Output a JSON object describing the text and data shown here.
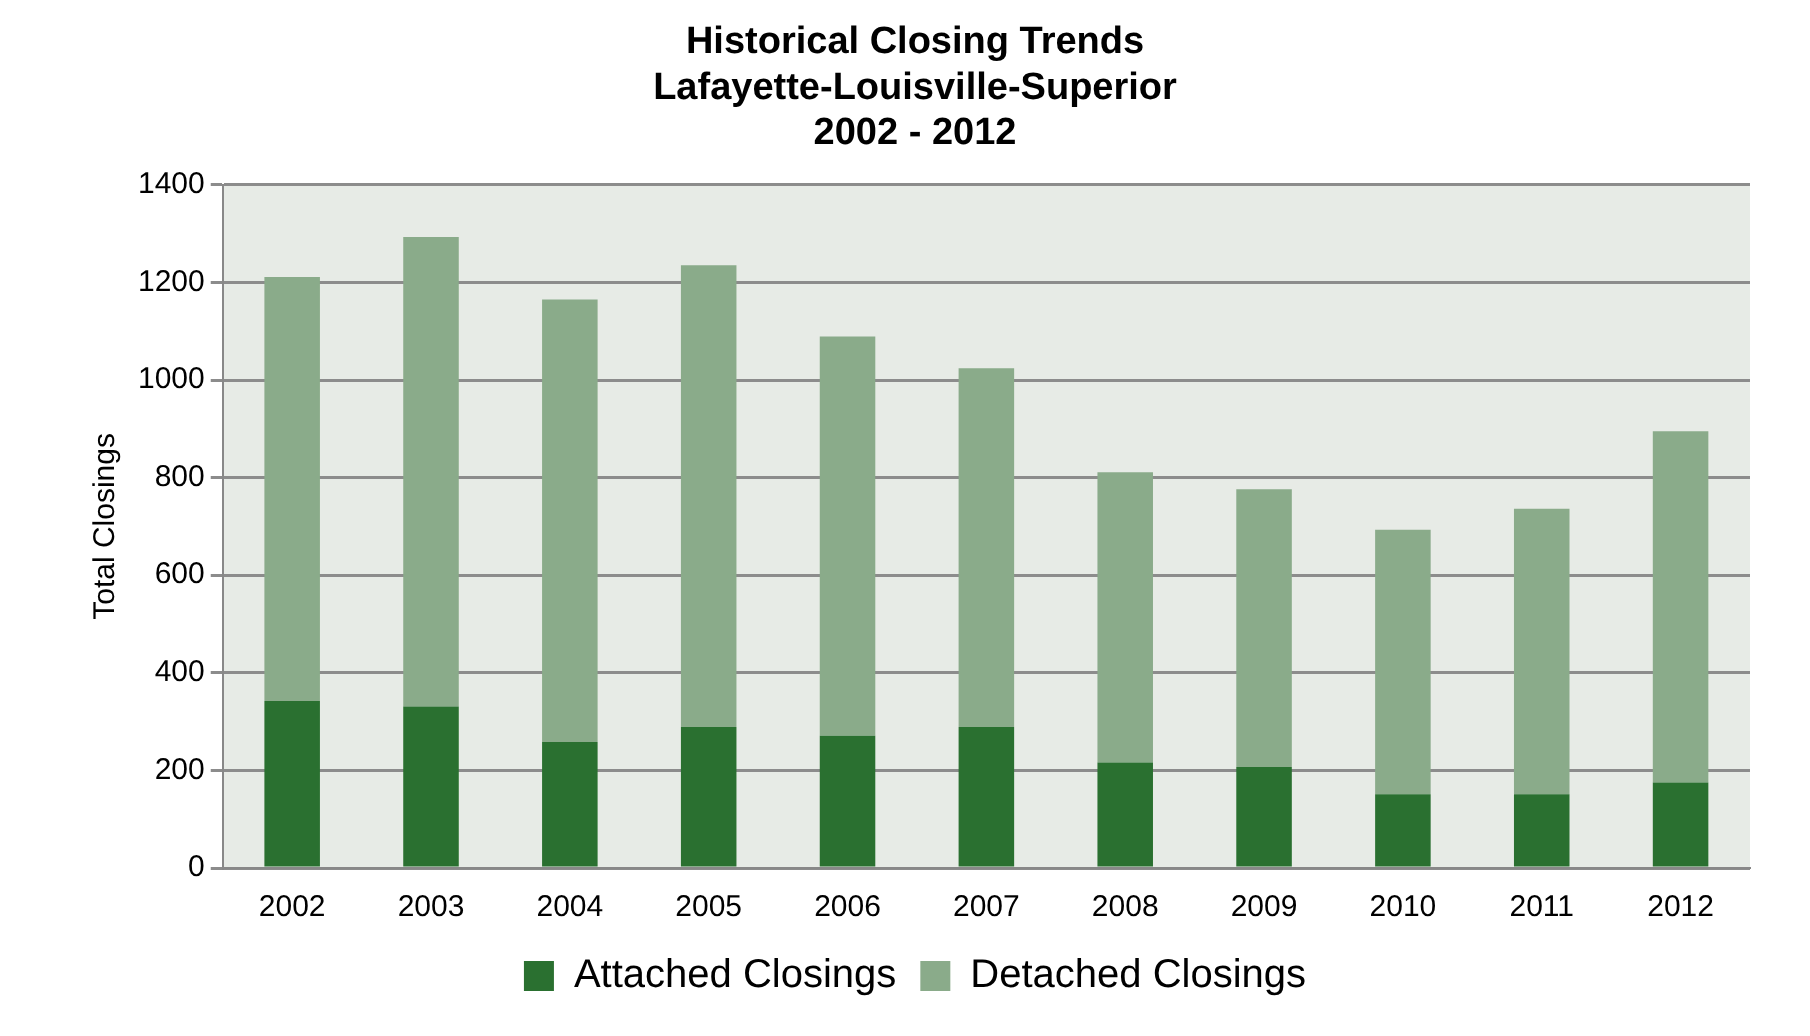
{
  "chart_data": {
    "type": "bar",
    "title": "Historical Closing Trends\nLafayette-Louisville-Superior\n2002 - 2012",
    "ylabel": "Total Closings",
    "categories": [
      "2002",
      "2003",
      "2004",
      "2005",
      "2006",
      "2007",
      "2008",
      "2009",
      "2010",
      "2011",
      "2012"
    ],
    "stacked": true,
    "series": [
      {
        "name": "Attached Closings",
        "color": "#2a7030",
        "values": [
          342,
          331,
          258,
          289,
          271,
          289,
          216,
          207,
          151,
          151,
          175
        ]
      },
      {
        "name": "Detached Closings",
        "color": "#8aab8a",
        "values": [
          869,
          962,
          907,
          946,
          818,
          735,
          595,
          569,
          542,
          585,
          720
        ]
      }
    ],
    "ylim": [
      0,
      1400
    ],
    "yticks": [
      0,
      200,
      400,
      600,
      800,
      1000,
      1200,
      1400
    ],
    "grid": "y",
    "legend": "bottom"
  }
}
